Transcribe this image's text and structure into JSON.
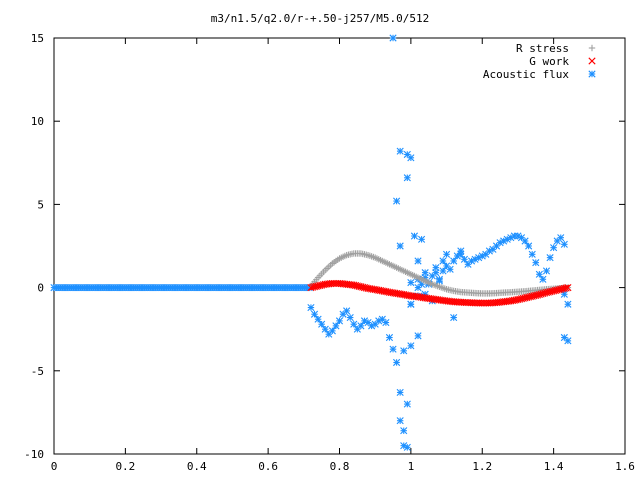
{
  "chart_data": {
    "type": "scatter",
    "title": "m3/n1.5/q2.0/r-+.50-j257/M5.0/512",
    "xlabel": "",
    "ylabel": "",
    "xlim": [
      0,
      1.6
    ],
    "ylim": [
      -10,
      15
    ],
    "xticks": [
      0,
      0.2,
      0.4,
      0.6,
      0.8,
      1,
      1.2,
      1.4,
      1.6
    ],
    "xtick_labels": [
      "0",
      "0.2",
      "0.4",
      "0.6",
      "0.8",
      "1",
      "1.2",
      "1.4",
      "1.6"
    ],
    "yticks": [
      -10,
      -5,
      0,
      5,
      10,
      15
    ],
    "ytick_labels": [
      "-10",
      "-5",
      "0",
      "5",
      "10",
      "15"
    ],
    "grid": false,
    "legend_position": "top-right",
    "series": [
      {
        "name": "R stress",
        "marker": "plus",
        "color": "#a0a0a0",
        "x": [
          0.72,
          0.74,
          0.76,
          0.78,
          0.8,
          0.82,
          0.84,
          0.86,
          0.88,
          0.9,
          0.92,
          0.94,
          0.96,
          0.98,
          1.0,
          1.02,
          1.04,
          1.06,
          1.08,
          1.1,
          1.12,
          1.14,
          1.16,
          1.18,
          1.2,
          1.22,
          1.24,
          1.26,
          1.28,
          1.3,
          1.32,
          1.34,
          1.36,
          1.38,
          1.4,
          1.42,
          1.44
        ],
        "y": [
          0.1,
          0.6,
          1.05,
          1.45,
          1.75,
          1.95,
          2.05,
          2.05,
          1.95,
          1.8,
          1.6,
          1.4,
          1.2,
          1.0,
          0.8,
          0.6,
          0.4,
          0.2,
          0.05,
          -0.1,
          -0.2,
          -0.27,
          -0.3,
          -0.33,
          -0.35,
          -0.35,
          -0.33,
          -0.3,
          -0.28,
          -0.25,
          -0.22,
          -0.18,
          -0.14,
          -0.1,
          -0.07,
          -0.04,
          0.0
        ]
      },
      {
        "name": "G work",
        "marker": "cross",
        "color": "#ff0000",
        "x": [
          0.72,
          0.74,
          0.76,
          0.78,
          0.8,
          0.82,
          0.84,
          0.86,
          0.88,
          0.9,
          0.92,
          0.94,
          0.96,
          0.98,
          1.0,
          1.02,
          1.04,
          1.06,
          1.08,
          1.1,
          1.12,
          1.14,
          1.16,
          1.18,
          1.2,
          1.22,
          1.24,
          1.26,
          1.28,
          1.3,
          1.32,
          1.34,
          1.36,
          1.38,
          1.4,
          1.42,
          1.44
        ],
        "y": [
          0.0,
          0.1,
          0.2,
          0.25,
          0.25,
          0.2,
          0.15,
          0.05,
          -0.05,
          -0.12,
          -0.2,
          -0.28,
          -0.35,
          -0.42,
          -0.5,
          -0.55,
          -0.62,
          -0.68,
          -0.74,
          -0.8,
          -0.85,
          -0.88,
          -0.9,
          -0.92,
          -0.93,
          -0.93,
          -0.9,
          -0.85,
          -0.8,
          -0.72,
          -0.62,
          -0.52,
          -0.42,
          -0.3,
          -0.2,
          -0.1,
          0.0
        ]
      },
      {
        "name": "Acoustic flux",
        "marker": "asterisk",
        "color": "#1e90ff",
        "x": [
          0.72,
          0.73,
          0.74,
          0.75,
          0.76,
          0.77,
          0.78,
          0.79,
          0.8,
          0.81,
          0.82,
          0.83,
          0.84,
          0.85,
          0.86,
          0.87,
          0.88,
          0.89,
          0.9,
          0.91,
          0.92,
          0.93,
          0.94,
          0.95,
          0.96,
          0.97,
          0.97,
          0.98,
          0.98,
          0.99,
          0.99,
          1.0,
          1.0,
          1.0,
          1.01,
          1.02,
          1.02,
          1.03,
          1.03,
          1.04,
          1.04,
          1.05,
          1.06,
          1.07,
          1.08,
          1.09,
          1.1,
          1.11,
          1.12,
          1.13,
          1.14,
          1.15,
          1.16,
          1.17,
          1.18,
          1.19,
          1.2,
          1.21,
          1.22,
          1.23,
          1.24,
          1.25,
          1.26,
          1.27,
          1.28,
          1.29,
          1.3,
          1.31,
          1.32,
          1.33,
          1.34,
          1.35,
          1.36,
          1.37,
          1.38,
          1.39,
          1.4,
          1.41,
          1.42,
          1.43,
          1.43,
          1.44,
          0.95,
          0.96,
          0.97,
          0.97,
          0.98,
          0.99,
          0.99,
          1.0,
          1.0,
          1.01,
          1.02,
          1.02,
          1.03,
          1.04,
          1.05,
          1.06,
          1.07,
          1.08,
          1.09,
          1.1,
          1.12,
          1.14,
          1.43,
          1.44
        ],
        "y": [
          -1.2,
          -1.6,
          -1.9,
          -2.2,
          -2.5,
          -2.8,
          -2.6,
          -2.3,
          -2.0,
          -1.6,
          -1.4,
          -1.8,
          -2.2,
          -2.5,
          -2.3,
          -2.0,
          -2.1,
          -2.3,
          -2.2,
          -2.0,
          -1.9,
          -2.1,
          -3.0,
          -3.7,
          -4.5,
          -6.3,
          -8.0,
          -8.6,
          -9.5,
          -9.6,
          -7.0,
          -3.5,
          -1.0,
          0.3,
          -0.5,
          0.5,
          0.0,
          -0.5,
          0.2,
          0.6,
          -0.4,
          0.3,
          0.7,
          0.9,
          0.5,
          1.0,
          1.3,
          1.1,
          1.6,
          1.9,
          2.0,
          1.7,
          1.4,
          1.6,
          1.7,
          1.8,
          1.9,
          2.0,
          2.2,
          2.3,
          2.5,
          2.7,
          2.8,
          2.9,
          3.0,
          3.1,
          3.1,
          3.0,
          2.8,
          2.5,
          2.0,
          1.5,
          0.8,
          0.5,
          1.0,
          1.8,
          2.4,
          2.8,
          3.0,
          2.6,
          -3.0,
          -3.2,
          15.0,
          5.2,
          8.2,
          2.5,
          -3.8,
          6.6,
          8.0,
          7.8,
          -1.0,
          3.1,
          -2.9,
          1.6,
          2.9,
          0.9,
          0.2,
          -0.8,
          1.2,
          0.4,
          1.6,
          2.0,
          -1.8,
          2.2,
          -0.4,
          -1.0
        ]
      }
    ],
    "baseline_dense": {
      "series": "Acoustic flux",
      "x_start": 0,
      "x_end": 0.72,
      "y": 0
    }
  }
}
